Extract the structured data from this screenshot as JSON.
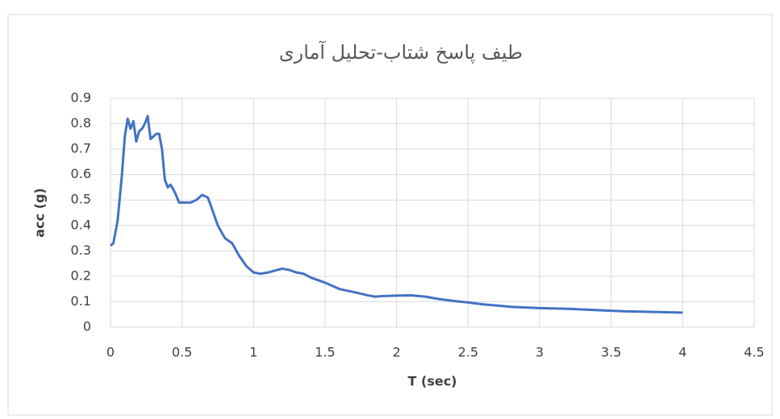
{
  "chart_data": {
    "type": "line",
    "title": "طیف پاسخ شتاب-تحلیل آماری",
    "xlabel": "T (sec)",
    "ylabel": "acc (g)",
    "x": [
      0,
      0.02,
      0.05,
      0.08,
      0.1,
      0.12,
      0.14,
      0.16,
      0.18,
      0.2,
      0.22,
      0.24,
      0.26,
      0.28,
      0.3,
      0.32,
      0.34,
      0.36,
      0.38,
      0.4,
      0.42,
      0.45,
      0.48,
      0.52,
      0.56,
      0.6,
      0.64,
      0.68,
      0.7,
      0.75,
      0.8,
      0.85,
      0.9,
      0.95,
      1.0,
      1.05,
      1.1,
      1.2,
      1.25,
      1.3,
      1.35,
      1.4,
      1.5,
      1.6,
      1.7,
      1.8,
      1.85,
      1.9,
      2.0,
      2.1,
      2.2,
      2.3,
      2.4,
      2.5,
      2.6,
      2.8,
      3.0,
      3.2,
      3.4,
      3.6,
      3.8,
      4.0
    ],
    "series": [
      {
        "name": "acc",
        "color": "#4472c4",
        "values": [
          0.32,
          0.33,
          0.42,
          0.6,
          0.75,
          0.82,
          0.78,
          0.81,
          0.73,
          0.77,
          0.78,
          0.8,
          0.83,
          0.74,
          0.75,
          0.76,
          0.76,
          0.7,
          0.58,
          0.55,
          0.56,
          0.53,
          0.49,
          0.49,
          0.49,
          0.5,
          0.52,
          0.51,
          0.48,
          0.4,
          0.35,
          0.33,
          0.28,
          0.24,
          0.215,
          0.21,
          0.215,
          0.23,
          0.225,
          0.215,
          0.21,
          0.195,
          0.175,
          0.15,
          0.138,
          0.125,
          0.12,
          0.122,
          0.124,
          0.125,
          0.12,
          0.11,
          0.103,
          0.097,
          0.09,
          0.08,
          0.075,
          0.072,
          0.067,
          0.062,
          0.06,
          0.057
        ]
      }
    ],
    "xlim": [
      0,
      4.5
    ],
    "xticks": [
      0,
      0.5,
      1,
      1.5,
      2,
      2.5,
      3,
      3.5,
      4,
      4.5
    ],
    "ylim": [
      0,
      0.9
    ],
    "yticks": [
      0,
      0.1,
      0.2,
      0.3,
      0.4,
      0.5,
      0.6,
      0.7,
      0.8,
      0.9
    ],
    "grid": true
  }
}
